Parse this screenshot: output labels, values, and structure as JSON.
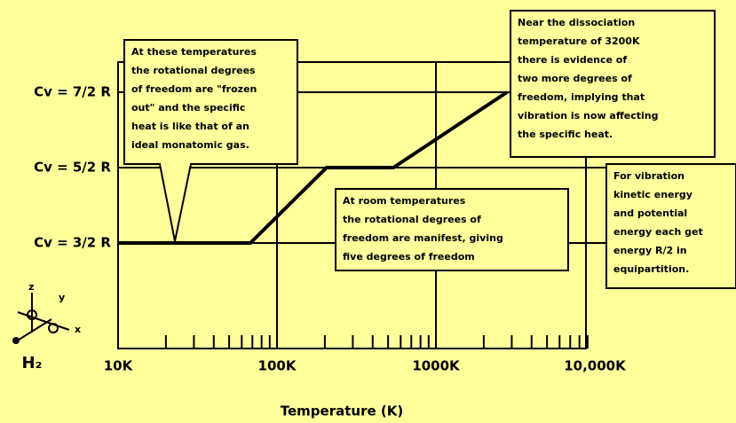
{
  "chart_data": {
    "type": "line",
    "xscale": "log",
    "xlabel": "Temperature (K)",
    "x": [
      10,
      68,
      205,
      540,
      2800
    ],
    "values": [
      1.5,
      1.5,
      2.5,
      2.5,
      3.5
    ],
    "color": "#000000",
    "xlim": [
      10,
      10000
    ],
    "ylim": [
      0.1,
      3.9
    ],
    "xticks": [
      {
        "value": 10,
        "label": "10K"
      },
      {
        "value": 100,
        "label": "100K"
      },
      {
        "value": 1000,
        "label": "1000K"
      },
      {
        "value": 10000,
        "label": "10,000K"
      }
    ],
    "xminorticks": [
      20,
      30,
      40,
      50,
      60,
      70,
      80,
      90,
      200,
      300,
      400,
      500,
      600,
      700,
      800,
      900,
      2000,
      3000,
      4000,
      5000,
      6000,
      7000,
      8000,
      9000
    ],
    "yticks": [
      {
        "value": 1.5,
        "label": "Cv = 3/2 R"
      },
      {
        "value": 2.5,
        "label": "Cv = 5/2 R"
      },
      {
        "value": 3.5,
        "label": "Cv = 7/2 R"
      }
    ],
    "grid": true,
    "molecule_label": "H₂",
    "axis_icon_labels": [
      "z",
      "y",
      "x"
    ],
    "annotations": [
      [
        "At these temperatures",
        "the rotational degrees",
        "of freedom are \"frozen",
        "out\" and the specific",
        "heat is like that of an",
        "ideal monatomic gas."
      ],
      [
        "At room temperatures",
        "the rotational degrees of",
        "freedom are manifest, giving",
        "five degrees of freedom"
      ],
      [
        "Near the dissociation",
        "temperature of 3200K",
        "there is evidence of",
        "two more degrees of",
        "freedom, implying that",
        "vibration is now affecting",
        "the specific heat."
      ],
      [
        "For vibration",
        "kinetic energy",
        "and potential",
        "energy each get",
        "energy R/2 in",
        "equipartition."
      ]
    ]
  }
}
